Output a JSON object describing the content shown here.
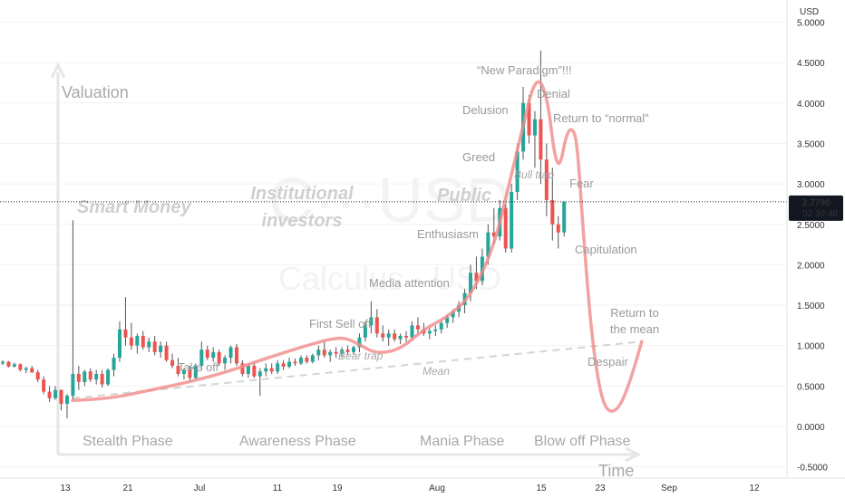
{
  "chart_data": {
    "type": "candlestick",
    "currency": "USD",
    "y_ticks": [
      "5.0000",
      "4.5000",
      "4.0000",
      "3.5000",
      "3.0000",
      "2.5000",
      "2.0000",
      "1.5000",
      "1.0000",
      "0.5000",
      "0.0000",
      "-0.5000"
    ],
    "ylim": [
      -0.55,
      5.1
    ],
    "x_ticks": [
      "13",
      "21",
      "Jul",
      "11",
      "19",
      "Aug",
      "15",
      "23",
      "Sep",
      "12"
    ],
    "last_price": "2.7790",
    "countdown": "02:39:48",
    "watermark_symbol": "C···USD",
    "watermark_name": "Calculus · USD",
    "axis_titles": {
      "y": "Valuation",
      "x": "Time"
    },
    "phases": [
      "Stealth Phase",
      "Awareness Phase",
      "Mania Phase",
      "Blow off Phase"
    ],
    "groups": [
      "Smart Money",
      "Institutional investors",
      "Public"
    ],
    "annotations": [
      "“New Paradigm”!!!",
      "Denial",
      "Delusion",
      "Return to “normal”",
      "Greed",
      "Bull trap",
      "Fear",
      "Enthusiasm",
      "Capitulation",
      "Media attention",
      "First Sell off",
      "Bear trap",
      "Take off",
      "Mean",
      "Return to the mean",
      "Despair"
    ],
    "mean_line": [
      [
        0,
        0.35
      ],
      [
        73,
        1.05
      ]
    ],
    "hype_curve": [
      [
        0,
        0.32
      ],
      [
        5,
        0.35
      ],
      [
        10,
        0.45
      ],
      [
        15,
        0.55
      ],
      [
        20,
        0.68
      ],
      [
        25,
        0.85
      ],
      [
        30,
        1.0
      ],
      [
        33,
        1.08
      ],
      [
        35,
        1.1
      ],
      [
        37,
        1.0
      ],
      [
        39,
        0.9
      ],
      [
        42,
        0.95
      ],
      [
        45,
        1.2
      ],
      [
        48,
        1.35
      ],
      [
        51,
        1.6
      ],
      [
        54,
        2.2
      ],
      [
        56,
        3.0
      ],
      [
        58,
        3.8
      ],
      [
        59,
        4.2
      ],
      [
        60,
        4.3
      ],
      [
        61,
        4.0
      ],
      [
        61.8,
        3.35
      ],
      [
        62.5,
        3.2
      ],
      [
        63.3,
        3.6
      ],
      [
        64,
        3.7
      ],
      [
        64.7,
        3.55
      ],
      [
        65.5,
        2.4
      ],
      [
        66.5,
        1.2
      ],
      [
        67.5,
        0.5
      ],
      [
        68.5,
        0.18
      ],
      [
        70,
        0.2
      ],
      [
        71.5,
        0.55
      ],
      [
        73,
        1.05
      ]
    ],
    "candles": [
      {
        "t": 0,
        "o": 0.78,
        "h": 0.82,
        "l": 0.76,
        "c": 0.8
      },
      {
        "t": 1,
        "o": 0.8,
        "h": 0.81,
        "l": 0.73,
        "c": 0.74
      },
      {
        "t": 2,
        "o": 0.74,
        "h": 0.79,
        "l": 0.73,
        "c": 0.77
      },
      {
        "t": 3,
        "o": 0.77,
        "h": 0.78,
        "l": 0.68,
        "c": 0.7
      },
      {
        "t": 4,
        "o": 0.7,
        "h": 0.74,
        "l": 0.66,
        "c": 0.72
      },
      {
        "t": 5,
        "o": 0.72,
        "h": 0.75,
        "l": 0.66,
        "c": 0.67
      },
      {
        "t": 6,
        "o": 0.67,
        "h": 0.7,
        "l": 0.55,
        "c": 0.58
      },
      {
        "t": 7,
        "o": 0.58,
        "h": 0.62,
        "l": 0.4,
        "c": 0.43
      },
      {
        "t": 8,
        "o": 0.43,
        "h": 0.5,
        "l": 0.3,
        "c": 0.35
      },
      {
        "t": 9,
        "o": 0.35,
        "h": 0.5,
        "l": 0.33,
        "c": 0.45
      },
      {
        "t": 10,
        "o": 0.45,
        "h": 0.46,
        "l": 0.2,
        "c": 0.28
      },
      {
        "t": 11,
        "o": 0.28,
        "h": 0.4,
        "l": 0.1,
        "c": 0.38
      },
      {
        "t": 12,
        "o": 0.38,
        "h": 2.55,
        "l": 0.33,
        "c": 0.65
      },
      {
        "t": 13,
        "o": 0.65,
        "h": 0.75,
        "l": 0.45,
        "c": 0.55
      },
      {
        "t": 14,
        "o": 0.55,
        "h": 0.7,
        "l": 0.5,
        "c": 0.68
      },
      {
        "t": 15,
        "o": 0.68,
        "h": 0.72,
        "l": 0.55,
        "c": 0.58
      },
      {
        "t": 16,
        "o": 0.58,
        "h": 0.7,
        "l": 0.52,
        "c": 0.65
      },
      {
        "t": 17,
        "o": 0.65,
        "h": 0.7,
        "l": 0.48,
        "c": 0.52
      },
      {
        "t": 18,
        "o": 0.52,
        "h": 0.72,
        "l": 0.5,
        "c": 0.7
      },
      {
        "t": 19,
        "o": 0.7,
        "h": 0.9,
        "l": 0.62,
        "c": 0.85
      },
      {
        "t": 20,
        "o": 0.85,
        "h": 1.3,
        "l": 0.8,
        "c": 1.2
      },
      {
        "t": 21,
        "o": 1.2,
        "h": 1.6,
        "l": 1.0,
        "c": 1.1
      },
      {
        "t": 22,
        "o": 1.1,
        "h": 1.28,
        "l": 0.95,
        "c": 1.0
      },
      {
        "t": 23,
        "o": 1.0,
        "h": 1.15,
        "l": 0.9,
        "c": 1.12
      },
      {
        "t": 24,
        "o": 1.12,
        "h": 1.18,
        "l": 0.95,
        "c": 0.98
      },
      {
        "t": 25,
        "o": 0.98,
        "h": 1.1,
        "l": 0.92,
        "c": 1.05
      },
      {
        "t": 26,
        "o": 1.05,
        "h": 1.12,
        "l": 0.88,
        "c": 0.92
      },
      {
        "t": 27,
        "o": 0.92,
        "h": 1.05,
        "l": 0.85,
        "c": 1.0
      },
      {
        "t": 28,
        "o": 1.0,
        "h": 1.05,
        "l": 0.8,
        "c": 0.82
      },
      {
        "t": 29,
        "o": 0.82,
        "h": 0.9,
        "l": 0.72,
        "c": 0.75
      },
      {
        "t": 30,
        "o": 0.75,
        "h": 0.85,
        "l": 0.62,
        "c": 0.65
      },
      {
        "t": 31,
        "o": 0.65,
        "h": 0.72,
        "l": 0.58,
        "c": 0.7
      },
      {
        "t": 32,
        "o": 0.7,
        "h": 0.75,
        "l": 0.55,
        "c": 0.6
      },
      {
        "t": 33,
        "o": 0.6,
        "h": 0.78,
        "l": 0.58,
        "c": 0.75
      },
      {
        "t": 34,
        "o": 0.75,
        "h": 1.05,
        "l": 0.7,
        "c": 0.95
      },
      {
        "t": 35,
        "o": 0.95,
        "h": 1.0,
        "l": 0.82,
        "c": 0.85
      },
      {
        "t": 36,
        "o": 0.85,
        "h": 0.98,
        "l": 0.8,
        "c": 0.92
      },
      {
        "t": 37,
        "o": 0.92,
        "h": 0.95,
        "l": 0.75,
        "c": 0.78
      },
      {
        "t": 38,
        "o": 0.78,
        "h": 0.88,
        "l": 0.7,
        "c": 0.85
      },
      {
        "t": 39,
        "o": 0.85,
        "h": 1.0,
        "l": 0.78,
        "c": 0.98
      },
      {
        "t": 40,
        "o": 0.98,
        "h": 1.02,
        "l": 0.75,
        "c": 0.78
      },
      {
        "t": 41,
        "o": 0.78,
        "h": 0.82,
        "l": 0.62,
        "c": 0.65
      },
      {
        "t": 42,
        "o": 0.65,
        "h": 0.78,
        "l": 0.6,
        "c": 0.75
      },
      {
        "t": 43,
        "o": 0.75,
        "h": 0.8,
        "l": 0.6,
        "c": 0.62
      },
      {
        "t": 44,
        "o": 0.62,
        "h": 0.72,
        "l": 0.38,
        "c": 0.68
      },
      {
        "t": 45,
        "o": 0.68,
        "h": 0.78,
        "l": 0.62,
        "c": 0.72
      },
      {
        "t": 46,
        "o": 0.72,
        "h": 0.78,
        "l": 0.65,
        "c": 0.68
      },
      {
        "t": 47,
        "o": 0.68,
        "h": 0.82,
        "l": 0.65,
        "c": 0.78
      },
      {
        "t": 48,
        "o": 0.78,
        "h": 0.82,
        "l": 0.7,
        "c": 0.74
      },
      {
        "t": 49,
        "o": 0.74,
        "h": 0.85,
        "l": 0.72,
        "c": 0.8
      },
      {
        "t": 50,
        "o": 0.8,
        "h": 0.84,
        "l": 0.75,
        "c": 0.78
      },
      {
        "t": 51,
        "o": 0.78,
        "h": 0.88,
        "l": 0.76,
        "c": 0.85
      },
      {
        "t": 52,
        "o": 0.85,
        "h": 0.88,
        "l": 0.78,
        "c": 0.8
      },
      {
        "t": 53,
        "o": 0.8,
        "h": 0.9,
        "l": 0.78,
        "c": 0.88
      },
      {
        "t": 54,
        "o": 0.88,
        "h": 1.0,
        "l": 0.82,
        "c": 0.95
      },
      {
        "t": 55,
        "o": 0.95,
        "h": 1.05,
        "l": 0.85,
        "c": 0.88
      },
      {
        "t": 56,
        "o": 0.88,
        "h": 0.95,
        "l": 0.8,
        "c": 0.92
      },
      {
        "t": 57,
        "o": 0.92,
        "h": 0.98,
        "l": 0.85,
        "c": 0.9
      },
      {
        "t": 58,
        "o": 0.9,
        "h": 0.98,
        "l": 0.85,
        "c": 0.95
      },
      {
        "t": 59,
        "o": 0.95,
        "h": 1.0,
        "l": 0.88,
        "c": 0.92
      },
      {
        "t": 60,
        "o": 0.92,
        "h": 1.0,
        "l": 0.88,
        "c": 0.98
      },
      {
        "t": 61,
        "o": 0.98,
        "h": 1.15,
        "l": 0.92,
        "c": 1.1
      },
      {
        "t": 62,
        "o": 1.1,
        "h": 1.3,
        "l": 1.05,
        "c": 1.25
      },
      {
        "t": 63,
        "o": 1.25,
        "h": 1.55,
        "l": 1.15,
        "c": 1.35
      },
      {
        "t": 64,
        "o": 1.35,
        "h": 1.45,
        "l": 1.1,
        "c": 1.15
      },
      {
        "t": 65,
        "o": 1.15,
        "h": 1.25,
        "l": 1.05,
        "c": 1.1
      },
      {
        "t": 66,
        "o": 1.1,
        "h": 1.2,
        "l": 1.0,
        "c": 1.15
      },
      {
        "t": 67,
        "o": 1.15,
        "h": 1.2,
        "l": 1.05,
        "c": 1.08
      },
      {
        "t": 68,
        "o": 1.08,
        "h": 1.15,
        "l": 1.02,
        "c": 1.12
      },
      {
        "t": 69,
        "o": 1.12,
        "h": 1.18,
        "l": 1.05,
        "c": 1.1
      },
      {
        "t": 70,
        "o": 1.1,
        "h": 1.3,
        "l": 1.08,
        "c": 1.25
      },
      {
        "t": 71,
        "o": 1.25,
        "h": 1.35,
        "l": 1.15,
        "c": 1.2
      },
      {
        "t": 72,
        "o": 1.2,
        "h": 1.28,
        "l": 1.12,
        "c": 1.15
      },
      {
        "t": 73,
        "o": 1.15,
        "h": 1.22,
        "l": 1.08,
        "c": 1.18
      },
      {
        "t": 74,
        "o": 1.18,
        "h": 1.25,
        "l": 1.12,
        "c": 1.2
      },
      {
        "t": 75,
        "o": 1.2,
        "h": 1.3,
        "l": 1.15,
        "c": 1.28
      },
      {
        "t": 76,
        "o": 1.28,
        "h": 1.38,
        "l": 1.22,
        "c": 1.35
      },
      {
        "t": 77,
        "o": 1.35,
        "h": 1.45,
        "l": 1.28,
        "c": 1.42
      },
      {
        "t": 78,
        "o": 1.42,
        "h": 1.55,
        "l": 1.35,
        "c": 1.5
      },
      {
        "t": 79,
        "o": 1.5,
        "h": 1.7,
        "l": 1.4,
        "c": 1.65
      },
      {
        "t": 80,
        "o": 1.65,
        "h": 2.0,
        "l": 1.55,
        "c": 1.9
      },
      {
        "t": 81,
        "o": 1.9,
        "h": 2.1,
        "l": 1.7,
        "c": 1.8
      },
      {
        "t": 82,
        "o": 1.8,
        "h": 2.2,
        "l": 1.75,
        "c": 2.1
      },
      {
        "t": 83,
        "o": 2.1,
        "h": 2.5,
        "l": 2.0,
        "c": 2.4
      },
      {
        "t": 84,
        "o": 2.4,
        "h": 2.7,
        "l": 2.25,
        "c": 2.35
      },
      {
        "t": 85,
        "o": 2.35,
        "h": 2.8,
        "l": 2.3,
        "c": 2.7
      },
      {
        "t": 86,
        "o": 2.7,
        "h": 2.75,
        "l": 2.15,
        "c": 2.2
      },
      {
        "t": 87,
        "o": 2.2,
        "h": 3.0,
        "l": 2.15,
        "c": 2.9
      },
      {
        "t": 88,
        "o": 2.9,
        "h": 3.5,
        "l": 2.8,
        "c": 3.4
      },
      {
        "t": 89,
        "o": 3.4,
        "h": 4.2,
        "l": 3.3,
        "c": 4.0
      },
      {
        "t": 90,
        "o": 4.0,
        "h": 4.1,
        "l": 3.5,
        "c": 3.6
      },
      {
        "t": 91,
        "o": 3.6,
        "h": 3.9,
        "l": 3.2,
        "c": 3.8
      },
      {
        "t": 92,
        "o": 3.8,
        "h": 4.65,
        "l": 3.0,
        "c": 3.3
      },
      {
        "t": 93,
        "o": 3.3,
        "h": 3.5,
        "l": 2.6,
        "c": 2.8
      },
      {
        "t": 94,
        "o": 2.8,
        "h": 3.2,
        "l": 2.3,
        "c": 2.5
      },
      {
        "t": 95,
        "o": 2.5,
        "h": 2.6,
        "l": 2.2,
        "c": 2.4
      },
      {
        "t": 96,
        "o": 2.4,
        "h": 2.78,
        "l": 2.35,
        "c": 2.78
      }
    ]
  }
}
